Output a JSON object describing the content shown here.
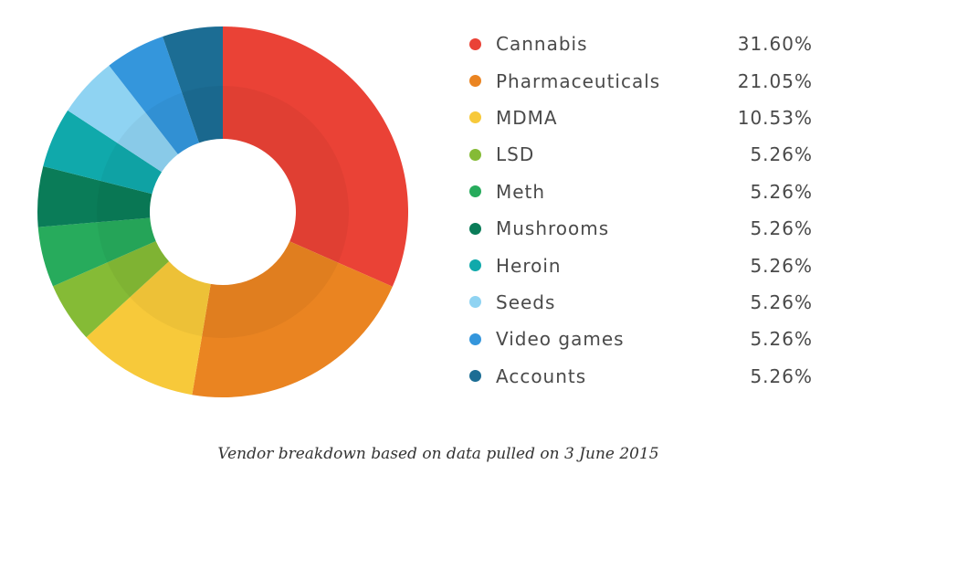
{
  "chart_data": {
    "type": "pie",
    "title": "",
    "categories": [
      "Cannabis",
      "Pharmaceuticals",
      "MDMA",
      "LSD",
      "Meth",
      "Mushrooms",
      "Heroin",
      "Seeds",
      "Video games",
      "Accounts"
    ],
    "values": [
      31.6,
      21.05,
      10.53,
      5.26,
      5.26,
      5.26,
      5.26,
      5.26,
      5.26,
      5.26
    ],
    "value_labels": [
      "31.60%",
      "21.05%",
      "10.53%",
      "5.26%",
      "5.26%",
      "5.26%",
      "5.26%",
      "5.26%",
      "5.26%",
      "5.26%"
    ],
    "colors": [
      "#ea4236",
      "#ea8421",
      "#f7c93a",
      "#85bb36",
      "#27ab5c",
      "#0a7c58",
      "#10a9ab",
      "#8fd3f2",
      "#3496dc",
      "#1c6d94"
    ],
    "legend_placement": "right",
    "style": "donut"
  },
  "caption": "Vendor breakdown based on data pulled on 3 June 2015"
}
